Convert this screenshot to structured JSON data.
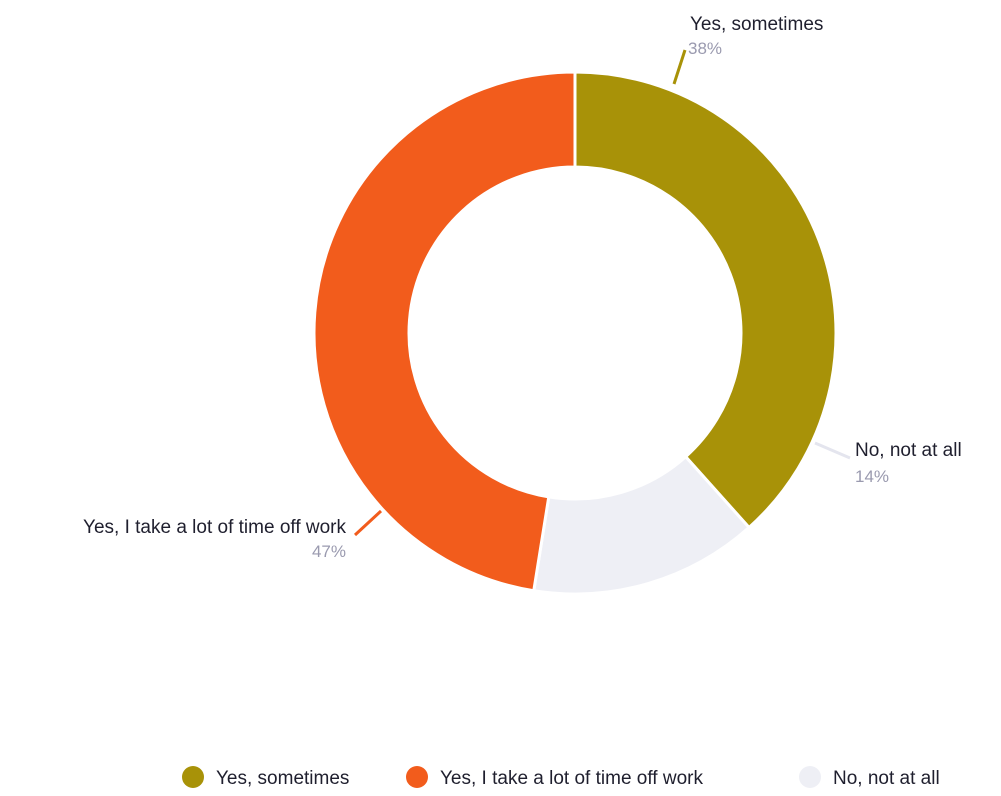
{
  "chart_data": {
    "type": "pie",
    "donut": true,
    "legend_position": "bottom-right",
    "slices": [
      {
        "label": "Yes, sometimes",
        "value": 38,
        "value_label": "38%",
        "color": "#a89208"
      },
      {
        "label": "No, not at all",
        "value": 14,
        "value_label": "14%",
        "color": "#eeeff5"
      },
      {
        "label": "Yes, I take a lot of time off work",
        "value": 47,
        "value_label": "47%",
        "color": "#f25c1c"
      }
    ],
    "legend": [
      {
        "label": "Yes, sometimes",
        "color": "#a89208"
      },
      {
        "label": "Yes, I take a lot of time off work",
        "color": "#f25c1c"
      },
      {
        "label": "No, not at all",
        "color": "#eeeff5"
      }
    ]
  }
}
